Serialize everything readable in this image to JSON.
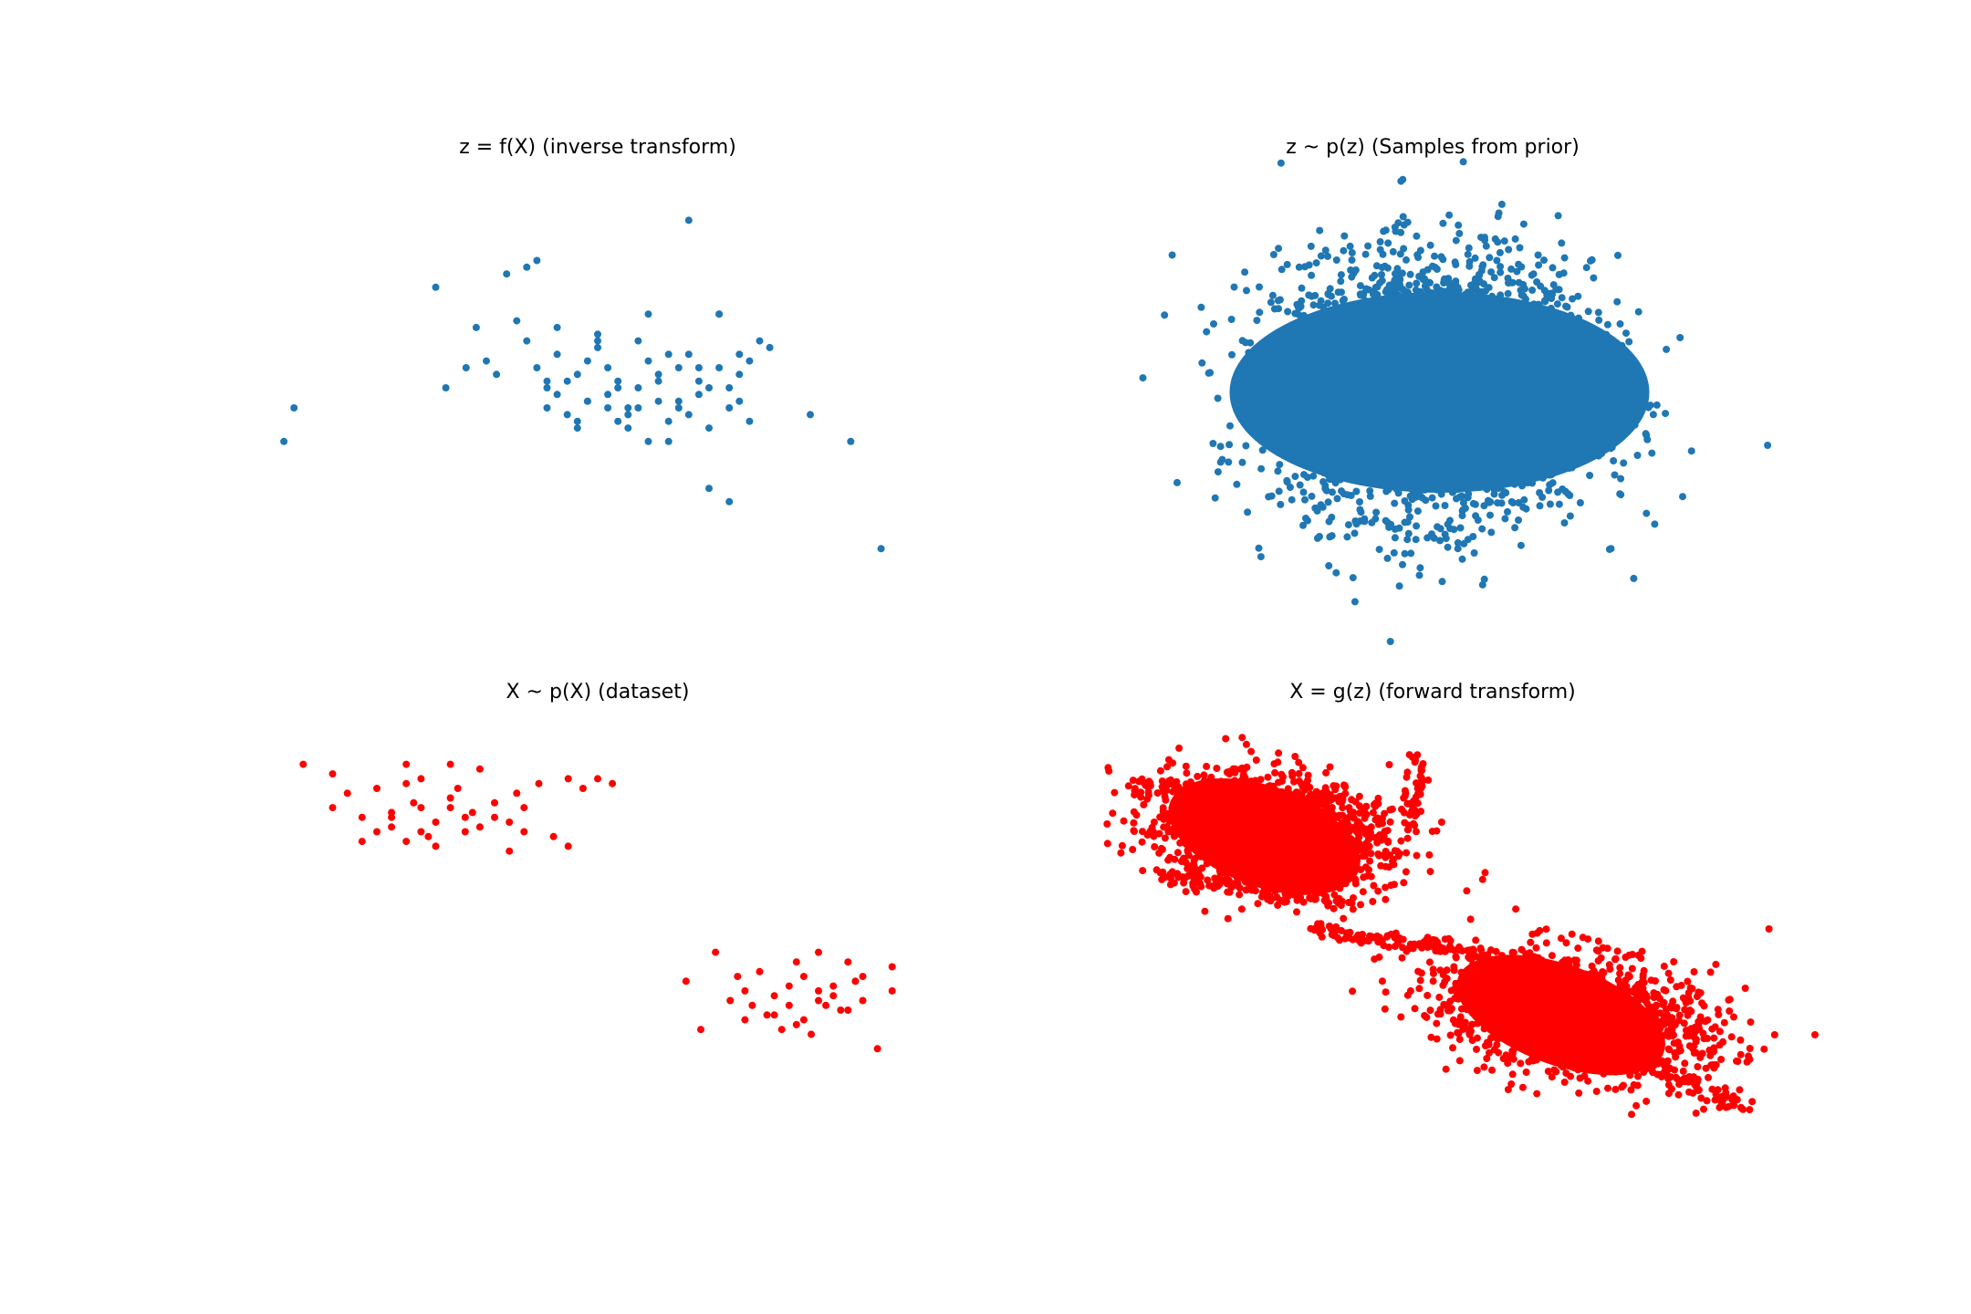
{
  "figure": {
    "background": "#ffffff",
    "colors": {
      "blue": "#1f77b4",
      "red": "#ff0000"
    }
  },
  "chart_data": [
    {
      "type": "scatter",
      "title": "z = f(X) (inverse transform)",
      "axes_visible": false,
      "xlim": [
        -3.2,
        3.2
      ],
      "ylim": [
        -3.2,
        3.2
      ],
      "color": "#1f77b4",
      "series": [
        {
          "x": [
            -3.1,
            -3.0,
            -1.6,
            -1.5,
            -1.2,
            -1.1,
            -1.0,
            -0.9,
            -0.8,
            -0.7,
            -0.7,
            -0.6,
            -0.5,
            -0.5,
            -0.4,
            -0.4,
            -0.3,
            -0.3,
            -0.2,
            -0.2,
            -0.1,
            -0.1,
            0.0,
            0.0,
            0.1,
            0.1,
            0.2,
            0.2,
            0.3,
            0.3,
            0.4,
            0.4,
            0.5,
            0.5,
            0.6,
            0.6,
            0.7,
            0.7,
            0.8,
            0.8,
            0.9,
            0.9,
            1.0,
            1.0,
            1.1,
            1.1,
            1.2,
            1.2,
            1.3,
            1.3,
            1.4,
            1.4,
            1.5,
            1.5,
            1.6,
            1.7,
            2.1,
            2.5,
            2.8,
            0.9,
            1.3,
            1.1,
            -0.6,
            -1.3,
            -0.4,
            0.2,
            0.6,
            0.0,
            -0.2,
            0.3,
            0.7,
            1.2,
            0.5,
            0.8,
            -0.1,
            1.4,
            1.0,
            0.4,
            -0.5,
            0.1
          ],
          "y": [
            -0.8,
            -0.3,
            1.5,
            0.0,
            0.9,
            0.4,
            0.2,
            1.7,
            1.0,
            1.8,
            0.7,
            0.3,
            0.0,
            -0.3,
            0.5,
            0.9,
            0.1,
            -0.4,
            0.2,
            -0.6,
            0.4,
            -0.2,
            0.6,
            0.8,
            0.3,
            -0.3,
            0.1,
            -0.5,
            -0.6,
            -0.4,
            0.7,
            -0.3,
            1.1,
            0.4,
            0.2,
            0.1,
            0.5,
            -0.5,
            -0.2,
            0.3,
            -0.4,
            0.5,
            0.1,
            -0.1,
            -0.6,
            0.0,
            0.3,
            1.1,
            0.0,
            -0.3,
            0.5,
            -0.2,
            0.4,
            -0.5,
            0.7,
            0.6,
            -0.4,
            -0.8,
            -2.4,
            2.5,
            -1.7,
            -1.5,
            1.9,
            0.3,
            -0.1,
            0.0,
            -0.2,
            0.7,
            -0.5,
            -0.3,
            -0.8,
            1.1,
            -0.8,
            -0.3,
            -0.2,
            0.2,
            0.3,
            0.0,
            0.1,
            -0.1
          ]
        }
      ]
    },
    {
      "type": "scatter",
      "title": "z ~ p(z) (Samples from prior)",
      "axes_visible": false,
      "xlim": [
        -4.2,
        4.2
      ],
      "ylim": [
        -3.4,
        3.4
      ],
      "color": "#1f77b4",
      "series": [
        {
          "distribution": "standard normal",
          "n": 20000
        }
      ]
    },
    {
      "type": "scatter",
      "title": "X ~ p(X) (dataset)",
      "axes_visible": false,
      "xlim": [
        -2.2,
        2.2
      ],
      "ylim": [
        -2.2,
        2.2
      ],
      "color": "#ff0000",
      "series": [
        {
          "x": [
            -2.0,
            -1.8,
            -1.8,
            -1.7,
            -1.6,
            -1.5,
            -1.5,
            -1.4,
            -1.4,
            -1.3,
            -1.3,
            -1.3,
            -1.2,
            -1.2,
            -1.2,
            -1.1,
            -1.1,
            -1.0,
            -1.0,
            -1.0,
            -0.9,
            -0.9,
            -0.8,
            -0.8,
            -0.7,
            -0.7,
            -0.6,
            -0.6,
            -0.5,
            -0.5,
            -0.4,
            -0.3,
            -0.2,
            -0.2,
            -0.1,
            0.0,
            0.1,
            -1.4,
            -1.6,
            -1.25,
            -1.15,
            -0.95,
            -0.85,
            -0.55,
            0.6,
            0.7,
            0.8,
            0.9,
            1.0,
            1.0,
            1.1,
            1.2,
            1.2,
            1.3,
            1.3,
            1.4,
            1.4,
            1.5,
            1.5,
            1.6,
            1.6,
            1.7,
            1.7,
            1.8,
            1.8,
            1.9,
            2.0,
            2.0,
            1.15,
            1.35,
            1.55,
            1.25,
            1.45,
            1.65,
            0.95,
            1.75,
            1.05,
            1.5,
            1.35
          ],
          "y": [
            1.75,
            1.65,
            1.3,
            1.45,
            1.2,
            1.5,
            1.05,
            1.1,
            1.25,
            1.75,
            1.55,
            0.95,
            1.3,
            1.05,
            1.6,
            1.15,
            0.9,
            1.75,
            1.3,
            1.4,
            1.2,
            1.05,
            1.7,
            1.1,
            1.35,
            1.2,
            1.15,
            0.85,
            1.05,
            1.3,
            1.55,
            1.0,
            1.6,
            0.9,
            1.5,
            1.6,
            1.55,
            1.2,
            0.95,
            1.35,
            1.0,
            1.5,
            1.25,
            1.45,
            -0.5,
            -1.0,
            -0.2,
            -0.7,
            -0.6,
            -0.9,
            -0.4,
            -0.65,
            -0.85,
            -0.55,
            -0.75,
            -0.45,
            -0.9,
            -0.2,
            -0.7,
            -0.55,
            -0.65,
            -0.3,
            -0.8,
            -0.45,
            -0.7,
            -1.2,
            -0.6,
            -0.35,
            -0.85,
            -0.95,
            -0.75,
            -1.0,
            -1.05,
            -0.8,
            -0.45,
            -0.5,
            -0.75,
            -0.6,
            -0.3
          ]
        }
      ]
    },
    {
      "type": "scatter",
      "title": "X = g(z) (forward transform)",
      "axes_visible": false,
      "xlim": [
        -2.2,
        2.2
      ],
      "ylim": [
        -2.2,
        2.2
      ],
      "color": "#ff0000",
      "series": [
        {
          "distribution": "two dense clusters joined by a bridge",
          "n": 20000
        }
      ]
    }
  ]
}
